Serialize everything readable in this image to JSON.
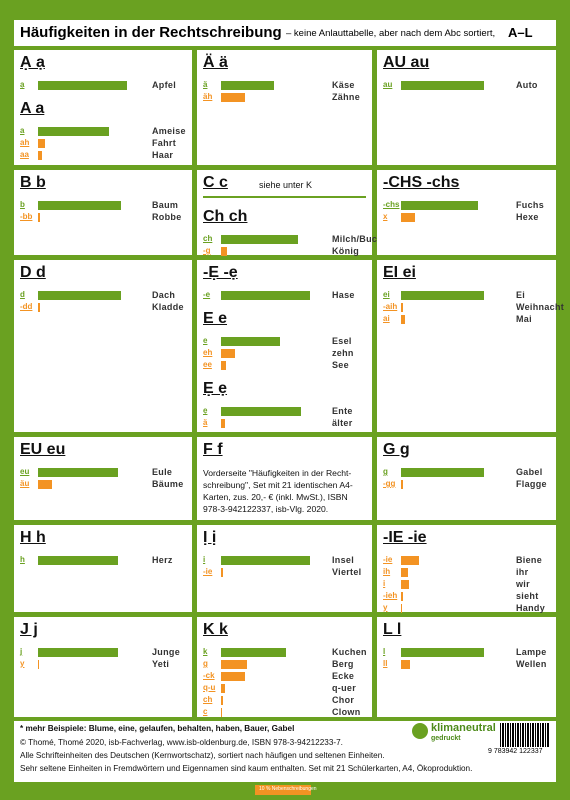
{
  "header": {
    "title": "Häufigkeiten in der Rechtschreibung",
    "subtitle": "– keine Anlauttabelle, aber nach dem Abc sortiert,",
    "range": "A–L"
  },
  "xlim": [
    0,
    100
  ],
  "cells": [
    {
      "sections": [
        {
          "heading": "Ạ  ạ",
          "rows": [
            {
              "grapheme": "ạ",
              "color": "#6aa121",
              "value": 75,
              "word": "Apfel"
            }
          ]
        },
        {
          "heading": "A  a",
          "rows": [
            {
              "grapheme": "a",
              "color": "#6aa121",
              "value": 60,
              "word": "Ameise"
            },
            {
              "grapheme": "ah",
              "color": "#f39323",
              "value": 6,
              "word": "Fahrt"
            },
            {
              "grapheme": "aa",
              "color": "#f39323",
              "value": 3,
              "word": "Haar"
            }
          ]
        }
      ]
    },
    {
      "sections": [
        {
          "heading": "Ä  ä",
          "rows": [
            {
              "grapheme": "ä",
              "color": "#6aa121",
              "value": 45,
              "word": "Käse"
            },
            {
              "grapheme": "äh",
              "color": "#f39323",
              "value": 20,
              "word": "Zähne"
            }
          ]
        }
      ]
    },
    {
      "sections": [
        {
          "heading": "AU  au",
          "rows": [
            {
              "grapheme": "au",
              "color": "#6aa121",
              "value": 70,
              "word": "Auto"
            }
          ]
        }
      ]
    },
    {
      "sections": [
        {
          "heading": "B  b",
          "rows": [
            {
              "grapheme": "b",
              "color": "#6aa121",
              "value": 70,
              "word": "Baum"
            },
            {
              "grapheme": "-bb",
              "color": "#f39323",
              "value": 2,
              "word": "Robbe"
            }
          ]
        }
      ]
    },
    {
      "sections": [
        {
          "heading": "C  c",
          "note": "siehe unter K",
          "rows": []
        },
        {
          "heading": "Ch  ch",
          "rows": [
            {
              "grapheme": "ch",
              "color": "#6aa121",
              "value": 65,
              "word": "Milch/Buch"
            },
            {
              "grapheme": "-g",
              "color": "#f39323",
              "value": 5,
              "word": "König"
            }
          ]
        }
      ]
    },
    {
      "sections": [
        {
          "heading": "-CHS  -chs",
          "rows": [
            {
              "grapheme": "-chs",
              "color": "#6aa121",
              "value": 65,
              "word": "Fuchs"
            },
            {
              "grapheme": "x",
              "color": "#f39323",
              "value": 12,
              "word": "Hexe"
            }
          ]
        }
      ]
    },
    {
      "sections": [
        {
          "heading": "D  d",
          "rows": [
            {
              "grapheme": "d",
              "color": "#6aa121",
              "value": 70,
              "word": "Dach"
            },
            {
              "grapheme": "-dd",
              "color": "#f39323",
              "value": 2,
              "word": "Kladde"
            }
          ]
        }
      ]
    },
    {
      "sections": [
        {
          "heading": "-Ẹ  -ẹ",
          "rows": [
            {
              "grapheme": "-e",
              "color": "#6aa121",
              "value": 75,
              "word": "Hase"
            }
          ]
        },
        {
          "heading": "E  e",
          "rows": [
            {
              "grapheme": "e",
              "color": "#6aa121",
              "value": 50,
              "word": "Esel"
            },
            {
              "grapheme": "eh",
              "color": "#f39323",
              "value": 12,
              "word": "zehn"
            },
            {
              "grapheme": "ee",
              "color": "#f39323",
              "value": 4,
              "word": "See"
            }
          ]
        },
        {
          "heading": "Ẹ  ẹ",
          "rows": [
            {
              "grapheme": "ẹ",
              "color": "#6aa121",
              "value": 68,
              "word": "Ente"
            },
            {
              "grapheme": "ä",
              "color": "#f39323",
              "value": 3,
              "word": "älter"
            }
          ]
        }
      ]
    },
    {
      "sections": [
        {
          "heading": "EI  ei",
          "rows": [
            {
              "grapheme": "ei",
              "color": "#6aa121",
              "value": 70,
              "word": "Ei"
            },
            {
              "grapheme": "-aih",
              "color": "#f39323",
              "value": 2,
              "word": "Weihnacht"
            },
            {
              "grapheme": "ai",
              "color": "#f39323",
              "value": 3,
              "word": "Mai"
            }
          ]
        }
      ]
    },
    {
      "sections": [
        {
          "heading": "EU  eu",
          "rows": [
            {
              "grapheme": "eu",
              "color": "#6aa121",
              "value": 68,
              "word": "Eule"
            },
            {
              "grapheme": "äu",
              "color": "#f39323",
              "value": 12,
              "word": "Bäume"
            }
          ]
        }
      ]
    },
    {
      "sections": [
        {
          "heading": "F  f",
          "text": "Vorderseite \"Häufigkeiten in der Recht-schreibung\", Set mit 21 identischen A4-Karten, zus. 20,- € (inkl. MwSt.), ISBN 978-3-942122337, isb-Vlg. 2020.",
          "rows": []
        }
      ]
    },
    {
      "sections": [
        {
          "heading": "G  g",
          "rows": [
            {
              "grapheme": "g",
              "color": "#6aa121",
              "value": 70,
              "word": "Gabel"
            },
            {
              "grapheme": "-gg",
              "color": "#f39323",
              "value": 2,
              "word": "Flagge"
            }
          ]
        }
      ]
    },
    {
      "sections": [
        {
          "heading": "H  h",
          "rows": [
            {
              "grapheme": "h",
              "color": "#6aa121",
              "value": 68,
              "word": "Herz"
            }
          ]
        }
      ]
    },
    {
      "sections": [
        {
          "heading": "Ị  ị",
          "rows": [
            {
              "grapheme": "i",
              "color": "#6aa121",
              "value": 75,
              "word": "Insel"
            },
            {
              "grapheme": "-ie",
              "color": "#f39323",
              "value": 2,
              "word": "Viertel"
            }
          ]
        }
      ]
    },
    {
      "sections": [
        {
          "heading": "-IE  -ie",
          "rows": [
            {
              "grapheme": "-ie",
              "color": "#f39323",
              "value": 15,
              "word": "Biene"
            },
            {
              "grapheme": "ih",
              "color": "#f39323",
              "value": 6,
              "word": "ihr"
            },
            {
              "grapheme": "i",
              "color": "#f39323",
              "value": 7,
              "word": "wir"
            },
            {
              "grapheme": "-ieh",
              "color": "#f39323",
              "value": 2,
              "word": "sieht"
            },
            {
              "grapheme": "y",
              "color": "#f39323",
              "value": 1,
              "word": "Handy"
            }
          ]
        }
      ]
    },
    {
      "sections": [
        {
          "heading": "J  j",
          "rows": [
            {
              "grapheme": "j",
              "color": "#6aa121",
              "value": 68,
              "word": "Junge"
            },
            {
              "grapheme": "y",
              "color": "#f39323",
              "value": 1,
              "word": "Yeti"
            }
          ]
        }
      ]
    },
    {
      "sections": [
        {
          "heading": "K  k",
          "rows": [
            {
              "grapheme": "k",
              "color": "#6aa121",
              "value": 55,
              "word": "Kuchen"
            },
            {
              "grapheme": "g",
              "color": "#f39323",
              "value": 22,
              "word": "Berg"
            },
            {
              "grapheme": "-ck",
              "color": "#f39323",
              "value": 20,
              "word": "Ecke"
            },
            {
              "grapheme": "q-u",
              "color": "#f39323",
              "value": 3,
              "word": "q-uer"
            },
            {
              "grapheme": "ch",
              "color": "#f39323",
              "value": 2,
              "word": "Chor"
            },
            {
              "grapheme": "c",
              "color": "#f39323",
              "value": 1,
              "word": "Clown"
            }
          ]
        }
      ]
    },
    {
      "sections": [
        {
          "heading": "L  l",
          "rows": [
            {
              "grapheme": "l",
              "color": "#6aa121",
              "value": 70,
              "word": "Lampe"
            },
            {
              "grapheme": "ll",
              "color": "#f39323",
              "value": 8,
              "word": "Wellen"
            }
          ]
        }
      ]
    }
  ],
  "footer": {
    "lines": [
      "* mehr Beispiele: Blume, eine, gelaufen, behalten, haben, Bauer, Gabel",
      "© Thomé, Thomé 2020, isb-Fachverlag, www.isb-oldenburg.de, ISBN 978-3-94212233-7.",
      "Alle Schrifteinheiten des Deutschen (Kernwortschatz), sortiert nach häufigen und seltenen Einheiten.",
      "Sehr seltene Einheiten in Fremdwörtern und Eigennamen sind kaum enthalten. Set mit 21 Schülerkarten, A4, Ökoproduktion."
    ],
    "logo": {
      "title": "klimaneutral",
      "subtitle": "gedruckt"
    },
    "barcode": "9 783942 122337",
    "tag": "10 % Nebenschreibungen"
  }
}
